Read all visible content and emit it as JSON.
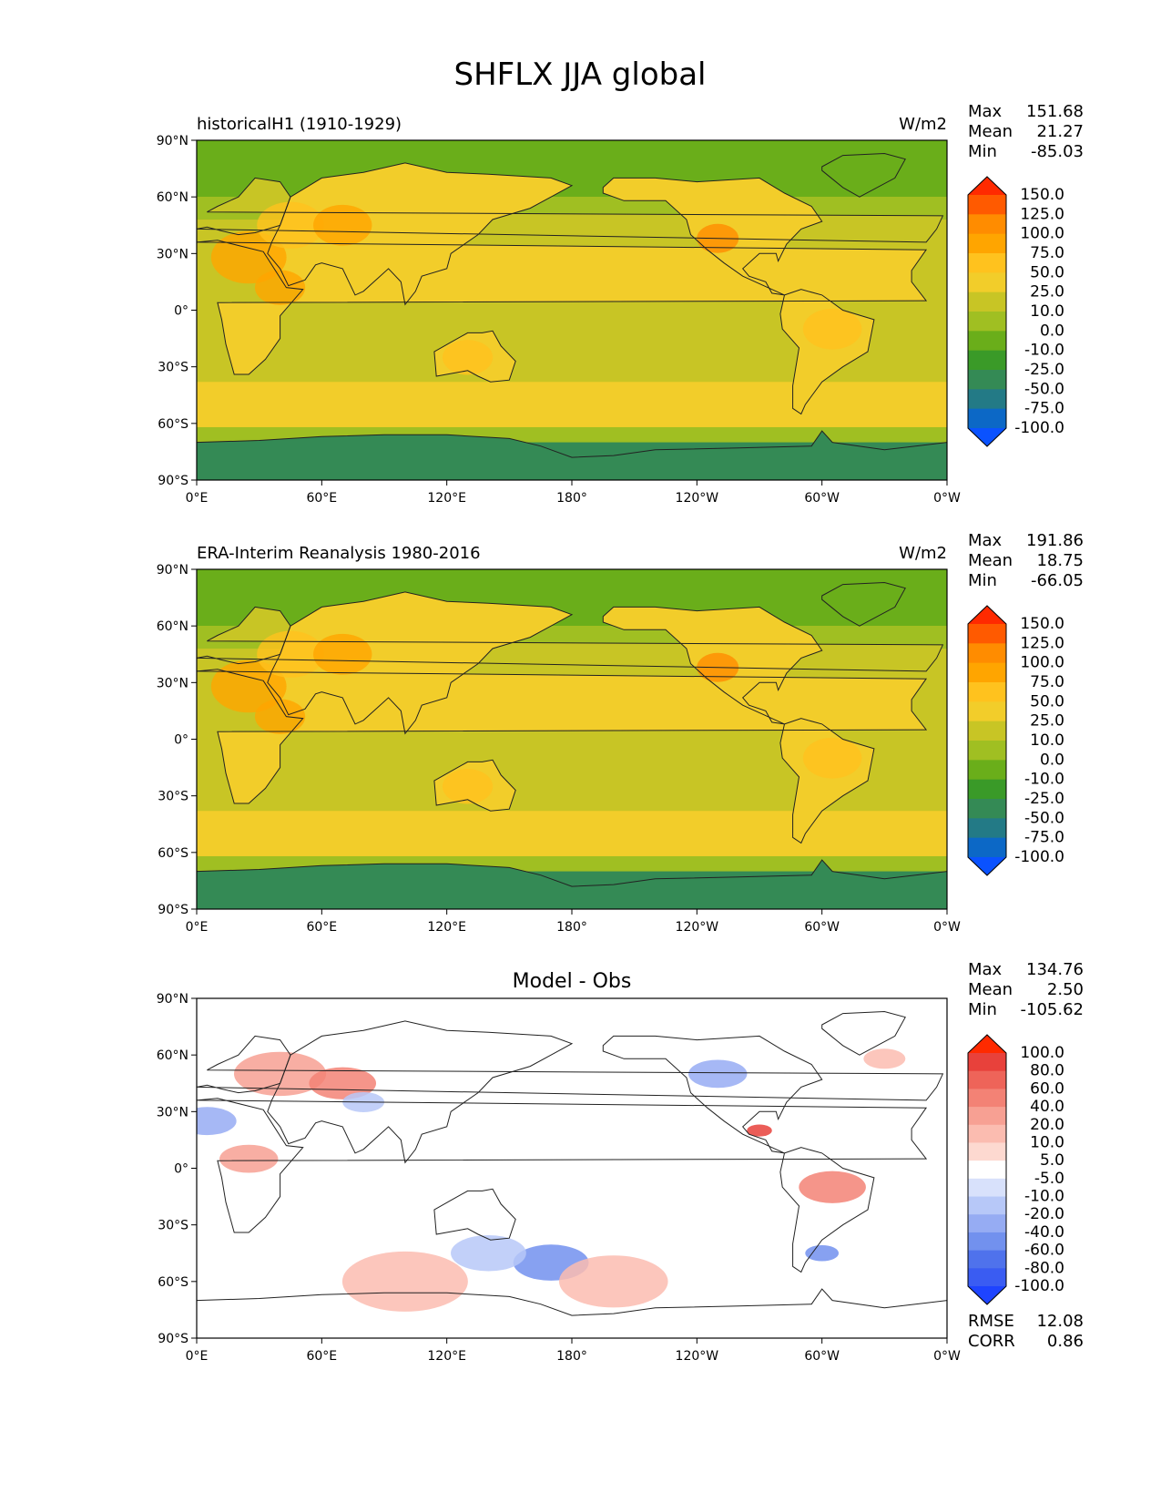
{
  "title": "SHFLX JJA global",
  "chart_data": [
    {
      "type": "heatmap",
      "title": "historicalH1 (1910-1929)",
      "units": "W/m2",
      "stats": [
        {
          "label": "Max",
          "value": "151.68"
        },
        {
          "label": "Mean",
          "value": "21.27"
        },
        {
          "label": "Min",
          "value": "-85.03"
        }
      ],
      "xticks": [
        "0°E",
        "60°E",
        "120°E",
        "180°",
        "120°W",
        "60°W",
        "0°W"
      ],
      "yticks": [
        "90°N",
        "60°N",
        "30°N",
        "0°",
        "30°S",
        "60°S",
        "90°S"
      ],
      "xlim": [
        0,
        360
      ],
      "ylim": [
        -90,
        90
      ],
      "colorbar": {
        "labels": [
          "150.0",
          "125.0",
          "100.0",
          "75.0",
          "50.0",
          "25.0",
          "10.0",
          "0.0",
          "-10.0",
          "-25.0",
          "-50.0",
          "-75.0",
          "-100.0"
        ],
        "colors": [
          "#ff2a00",
          "#ff5a00",
          "#ff8c00",
          "#ffa500",
          "#ffc21e",
          "#f2cd2a",
          "#c8c525",
          "#a0bf22",
          "#6aae1a",
          "#3a9a28",
          "#348a55",
          "#237a86",
          "#0c68c6",
          "#0a52ff"
        ]
      }
    },
    {
      "type": "heatmap",
      "title": "ERA-Interim Reanalysis 1980-2016",
      "units": "W/m2",
      "stats": [
        {
          "label": "Max",
          "value": "191.86"
        },
        {
          "label": "Mean",
          "value": "18.75"
        },
        {
          "label": "Min",
          "value": "-66.05"
        }
      ],
      "xticks": [
        "0°E",
        "60°E",
        "120°E",
        "180°",
        "120°W",
        "60°W",
        "0°W"
      ],
      "yticks": [
        "90°N",
        "60°N",
        "30°N",
        "0°",
        "30°S",
        "60°S",
        "90°S"
      ],
      "xlim": [
        0,
        360
      ],
      "ylim": [
        -90,
        90
      ],
      "colorbar": {
        "labels": [
          "150.0",
          "125.0",
          "100.0",
          "75.0",
          "50.0",
          "25.0",
          "10.0",
          "0.0",
          "-10.0",
          "-25.0",
          "-50.0",
          "-75.0",
          "-100.0"
        ],
        "colors": [
          "#ff2a00",
          "#ff5a00",
          "#ff8c00",
          "#ffa500",
          "#ffc21e",
          "#f2cd2a",
          "#c8c525",
          "#a0bf22",
          "#6aae1a",
          "#3a9a28",
          "#348a55",
          "#237a86",
          "#0c68c6",
          "#0a52ff"
        ]
      }
    },
    {
      "type": "heatmap",
      "title": "Model - Obs",
      "units": "",
      "stats": [
        {
          "label": "Max",
          "value": "134.76"
        },
        {
          "label": "Mean",
          "value": "2.50"
        },
        {
          "label": "Min",
          "value": "-105.62"
        }
      ],
      "metrics": [
        {
          "label": "RMSE",
          "value": "12.08"
        },
        {
          "label": "CORR",
          "value": "0.86"
        }
      ],
      "xticks": [
        "0°E",
        "60°E",
        "120°E",
        "180°",
        "120°W",
        "60°W",
        "0°W"
      ],
      "yticks": [
        "90°N",
        "60°N",
        "30°N",
        "0°",
        "30°S",
        "60°S",
        "90°S"
      ],
      "xlim": [
        0,
        360
      ],
      "ylim": [
        -90,
        90
      ],
      "colorbar": {
        "labels": [
          "100.0",
          "80.0",
          "60.0",
          "40.0",
          "20.0",
          "10.0",
          "5.0",
          "-5.0",
          "-10.0",
          "-20.0",
          "-40.0",
          "-60.0",
          "-80.0",
          "-100.0"
        ],
        "colors": [
          "#ff2a00",
          "#e8413b",
          "#ee6459",
          "#f38275",
          "#f7a093",
          "#fbbcb0",
          "#fdd9d0",
          "#ffffff",
          "#d8e1fb",
          "#b7c8f8",
          "#96acf3",
          "#7291ee",
          "#4f72ec",
          "#3a5cf2",
          "#1e44ff"
        ]
      }
    }
  ]
}
